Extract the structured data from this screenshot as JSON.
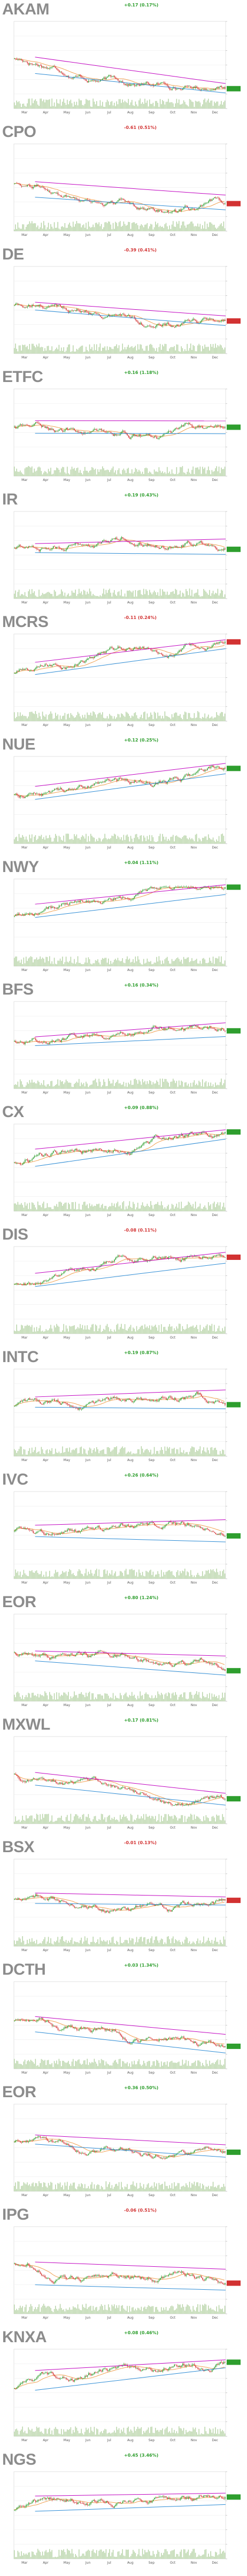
{
  "page": {
    "background": "#ffffff"
  },
  "chart_data": [
    {
      "type": "line",
      "ticker": "AKAM",
      "change_text": "+0.17 (0.17%)",
      "change_sign": "up",
      "x_tick_labels": [
        "Mar",
        "Apr",
        "May",
        "Jun",
        "Jul",
        "Aug",
        "Sep",
        "Oct",
        "Nov",
        "Dec"
      ]
    },
    {
      "type": "line",
      "ticker": "CPO",
      "change_text": "-0.61 (0.51%)",
      "change_sign": "down",
      "x_tick_labels": [
        "Mar",
        "Apr",
        "May",
        "Jun",
        "Jul",
        "Aug",
        "Sep",
        "Oct",
        "Nov",
        "Dec"
      ]
    },
    {
      "type": "line",
      "ticker": "DE",
      "change_text": "-0.39 (0.41%)",
      "change_sign": "down",
      "x_tick_labels": [
        "Mar",
        "Apr",
        "May",
        "Jun",
        "Jul",
        "Aug",
        "Sep",
        "Oct",
        "Nov",
        "Dec"
      ]
    },
    {
      "type": "line",
      "ticker": "ETFC",
      "change_text": "+0.16 (1.18%)",
      "change_sign": "up",
      "x_tick_labels": [
        "Mar",
        "Apr",
        "May",
        "Jun",
        "Jul",
        "Aug",
        "Sep",
        "Oct",
        "Nov",
        "Dec"
      ]
    },
    {
      "type": "line",
      "ticker": "IR",
      "change_text": "+0.19 (0.43%)",
      "change_sign": "up",
      "x_tick_labels": [
        "Mar",
        "Apr",
        "May",
        "Jun",
        "Jul",
        "Aug",
        "Sep",
        "Oct",
        "Nov",
        "Dec"
      ]
    },
    {
      "type": "line",
      "ticker": "MCRS",
      "change_text": "-0.11 (0.24%)",
      "change_sign": "down",
      "x_tick_labels": [
        "Mar",
        "Apr",
        "May",
        "Jun",
        "Jul",
        "Aug",
        "Sep",
        "Oct",
        "Nov",
        "Dec"
      ]
    },
    {
      "type": "line",
      "ticker": "NUE",
      "change_text": "+0.12 (0.25%)",
      "change_sign": "up",
      "x_tick_labels": [
        "Mar",
        "Apr",
        "May",
        "Jun",
        "Jul",
        "Aug",
        "Sep",
        "Oct",
        "Nov",
        "Dec"
      ]
    },
    {
      "type": "line",
      "ticker": "NWY",
      "change_text": "+0.04 (1.11%)",
      "change_sign": "up",
      "x_tick_labels": [
        "Mar",
        "Apr",
        "May",
        "Jun",
        "Jul",
        "Aug",
        "Sep",
        "Oct",
        "Nov",
        "Dec"
      ]
    },
    {
      "type": "line",
      "ticker": "BFS",
      "change_text": "+0.16 (0.34%)",
      "change_sign": "up",
      "x_tick_labels": [
        "Mar",
        "Apr",
        "May",
        "Jun",
        "Jul",
        "Aug",
        "Sep",
        "Oct",
        "Nov",
        "Dec"
      ]
    },
    {
      "type": "line",
      "ticker": "CX",
      "change_text": "+0.09 (0.88%)",
      "change_sign": "up",
      "x_tick_labels": [
        "Mar",
        "Apr",
        "May",
        "Jun",
        "Jul",
        "Aug",
        "Sep",
        "Oct",
        "Nov",
        "Dec"
      ]
    },
    {
      "type": "line",
      "ticker": "DIS",
      "change_text": "-0.08 (0.11%)",
      "change_sign": "down",
      "x_tick_labels": [
        "Mar",
        "Apr",
        "May",
        "Jun",
        "Jul",
        "Aug",
        "Sep",
        "Oct",
        "Nov",
        "Dec"
      ]
    },
    {
      "type": "line",
      "ticker": "INTC",
      "change_text": "+0.19 (0.87%)",
      "change_sign": "up",
      "x_tick_labels": [
        "Mar",
        "Apr",
        "May",
        "Jun",
        "Jul",
        "Aug",
        "Sep",
        "Oct",
        "Nov",
        "Dec"
      ]
    },
    {
      "type": "line",
      "ticker": "IVC",
      "change_text": "+0.26 (0.64%)",
      "change_sign": "up",
      "x_tick_labels": [
        "Mar",
        "Apr",
        "May",
        "Jun",
        "Jul",
        "Aug",
        "Sep",
        "Oct",
        "Nov",
        "Dec"
      ]
    },
    {
      "type": "line",
      "ticker": "EOR",
      "change_text": "+0.80 (1.24%)",
      "change_sign": "up",
      "x_tick_labels": [
        "Mar",
        "Apr",
        "May",
        "Jun",
        "Jul",
        "Aug",
        "Sep",
        "Oct",
        "Nov",
        "Dec"
      ]
    },
    {
      "type": "line",
      "ticker": "MXWL",
      "change_text": "+0.17 (0.81%)",
      "change_sign": "up",
      "x_tick_labels": [
        "Mar",
        "Apr",
        "May",
        "Jun",
        "Jul",
        "Aug",
        "Sep",
        "Oct",
        "Nov",
        "Dec"
      ]
    },
    {
      "type": "line",
      "ticker": "BSX",
      "change_text": "-0.01 (0.13%)",
      "change_sign": "down",
      "x_tick_labels": [
        "Mar",
        "Apr",
        "May",
        "Jun",
        "Jul",
        "Aug",
        "Sep",
        "Oct",
        "Nov",
        "Dec"
      ]
    },
    {
      "type": "line",
      "ticker": "DCTH",
      "change_text": "+0.03 (1.34%)",
      "change_sign": "up",
      "x_tick_labels": [
        "Mar",
        "Apr",
        "May",
        "Jun",
        "Jul",
        "Aug",
        "Sep",
        "Oct",
        "Nov",
        "Dec"
      ]
    },
    {
      "type": "line",
      "ticker": "EOR",
      "change_text": "+0.36 (0.50%)",
      "change_sign": "up",
      "x_tick_labels": [
        "Mar",
        "Apr",
        "May",
        "Jun",
        "Jul",
        "Aug",
        "Sep",
        "Oct",
        "Nov",
        "Dec"
      ]
    },
    {
      "type": "line",
      "ticker": "IPG",
      "change_text": "-0.06 (0.51%)",
      "change_sign": "down",
      "x_tick_labels": [
        "Mar",
        "Apr",
        "May",
        "Jun",
        "Jul",
        "Aug",
        "Sep",
        "Oct",
        "Nov",
        "Dec"
      ]
    },
    {
      "type": "line",
      "ticker": "KNXA",
      "change_text": "+0.08 (0.46%)",
      "change_sign": "up",
      "x_tick_labels": [
        "Mar",
        "Apr",
        "May",
        "Jun",
        "Jul",
        "Aug",
        "Sep",
        "Oct",
        "Nov",
        "Dec"
      ]
    },
    {
      "type": "line",
      "ticker": "NGS",
      "change_text": "+0.45 (3.46%)",
      "change_sign": "up",
      "x_tick_labels": [
        "Mar",
        "Apr",
        "May",
        "Jun",
        "Jul",
        "Aug",
        "Sep",
        "Oct",
        "Nov",
        "Dec"
      ]
    }
  ],
  "colors": {
    "up": "#2e9e2e",
    "down": "#d23232",
    "trend_magenta": "#c000c0",
    "trend_blue": "#2a8ad4",
    "trend_orange": "#f0a050",
    "grid": "#e8e8e8",
    "volume": "#b8d4a8"
  }
}
